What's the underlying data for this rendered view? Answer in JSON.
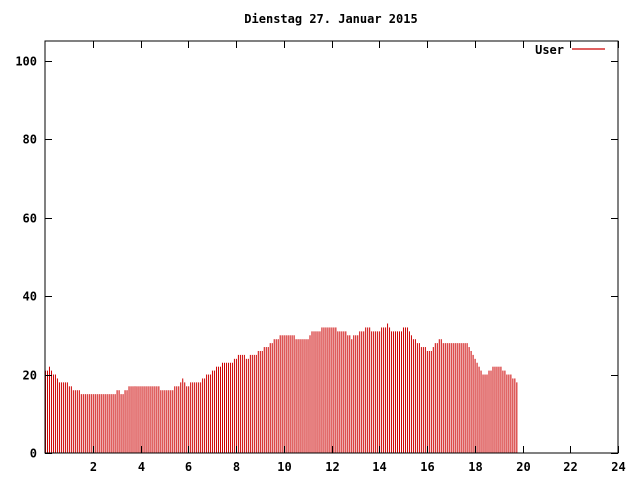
{
  "chart_data": {
    "type": "bar",
    "title": "Dienstag 27. Januar 2015",
    "xlabel": "",
    "ylabel": "",
    "xlim": [
      0,
      24
    ],
    "ylim": [
      0,
      105
    ],
    "xticks": [
      2,
      4,
      6,
      8,
      10,
      12,
      14,
      16,
      18,
      20,
      22,
      24
    ],
    "yticks": [
      0,
      20,
      40,
      60,
      80,
      100
    ],
    "grid": false,
    "legend_position": "top-right",
    "x_start": 0.0,
    "x_step": 0.0833,
    "series": [
      {
        "name": "User",
        "color": "#cc0000",
        "values": [
          21,
          21,
          22,
          21,
          20,
          20,
          19,
          18,
          18,
          18,
          18,
          18,
          17,
          17,
          16,
          16,
          16,
          16,
          15,
          15,
          15,
          15,
          15,
          15,
          15,
          15,
          15,
          15,
          15,
          15,
          15,
          15,
          15,
          15,
          15,
          15,
          16,
          16,
          15,
          15,
          16,
          16,
          17,
          17,
          17,
          17,
          17,
          17,
          17,
          17,
          17,
          17,
          17,
          17,
          17,
          17,
          17,
          17,
          16,
          16,
          16,
          16,
          16,
          16,
          16,
          17,
          17,
          17,
          18,
          19,
          18,
          17,
          17,
          18,
          18,
          18,
          18,
          18,
          18,
          19,
          19,
          20,
          20,
          20,
          21,
          21,
          22,
          22,
          22,
          23,
          23,
          23,
          23,
          23,
          23,
          24,
          24,
          25,
          25,
          25,
          25,
          24,
          24,
          25,
          25,
          25,
          25,
          26,
          26,
          26,
          27,
          27,
          27,
          28,
          28,
          29,
          29,
          29,
          30,
          30,
          30,
          30,
          30,
          30,
          30,
          30,
          29,
          29,
          29,
          29,
          29,
          29,
          29,
          30,
          31,
          31,
          31,
          31,
          31,
          32,
          32,
          32,
          32,
          32,
          32,
          32,
          32,
          31,
          31,
          31,
          31,
          31,
          30,
          30,
          29,
          30,
          30,
          30,
          31,
          31,
          31,
          32,
          32,
          32,
          31,
          31,
          31,
          31,
          31,
          32,
          32,
          32,
          33,
          32,
          31,
          31,
          31,
          31,
          31,
          31,
          32,
          32,
          32,
          31,
          30,
          29,
          29,
          28,
          28,
          27,
          27,
          27,
          26,
          26,
          26,
          27,
          28,
          28,
          29,
          29,
          28,
          28,
          28,
          28,
          28,
          28,
          28,
          28,
          28,
          28,
          28,
          28,
          28,
          27,
          26,
          25,
          24,
          23,
          22,
          21,
          20,
          20,
          20,
          21,
          21,
          22,
          22,
          22,
          22,
          22,
          21,
          21,
          20,
          20,
          20,
          19,
          19,
          18
        ]
      }
    ]
  }
}
